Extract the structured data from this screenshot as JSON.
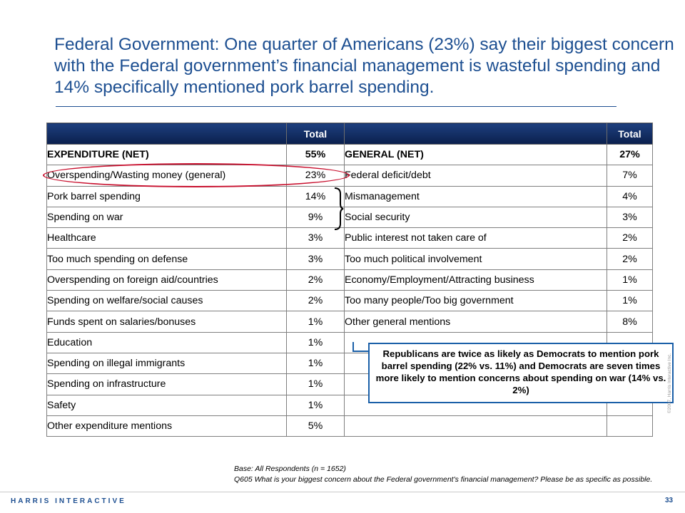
{
  "title": "Federal Government: One quarter of Americans (23%) say their biggest concern with the Federal government’s financial management is wasteful spending and 14% specifically mentioned pork barrel spending.",
  "table": {
    "header": {
      "col1": "",
      "total1": "Total",
      "col2": "",
      "total2": "Total"
    },
    "net_row": {
      "label1": "EXPENDITURE (NET)",
      "value1": "55%",
      "label2": "GENERAL (NET)",
      "value2": "27%"
    },
    "rows": [
      {
        "label1": "Overspending/Wasting money (general)",
        "value1": "23%",
        "label2": "Federal deficit/debt",
        "value2": "7%"
      },
      {
        "label1": "Pork barrel spending",
        "value1": "14%",
        "label2": "Mismanagement",
        "value2": "4%"
      },
      {
        "label1": "Spending on war",
        "value1": "9%",
        "label2": "Social security",
        "value2": "3%"
      },
      {
        "label1": "Healthcare",
        "value1": "3%",
        "label2": "Public interest not taken care of",
        "value2": "2%"
      },
      {
        "label1": "Too much spending on defense",
        "value1": "3%",
        "label2": "Too much political involvement",
        "value2": "2%"
      },
      {
        "label1": "Overspending on foreign aid/countries",
        "value1": "2%",
        "label2": "Economy/Employment/Attracting business",
        "value2": "1%"
      },
      {
        "label1": "Spending on welfare/social causes",
        "value1": "2%",
        "label2": "Too many people/Too big government",
        "value2": "1%"
      },
      {
        "label1": "Funds spent on salaries/bonuses",
        "value1": "1%",
        "label2": "Other general mentions",
        "value2": "8%"
      },
      {
        "label1": "Education",
        "value1": "1%",
        "label2": "",
        "value2": ""
      },
      {
        "label1": "Spending on illegal immigrants",
        "value1": "1%",
        "label2": "",
        "value2": ""
      },
      {
        "label1": "Spending on infrastructure",
        "value1": "1%",
        "label2": "",
        "value2": ""
      },
      {
        "label1": "Safety",
        "value1": "1%",
        "label2": "",
        "value2": ""
      },
      {
        "label1": "Other expenditure mentions",
        "value1": "5%",
        "label2": "",
        "value2": ""
      }
    ]
  },
  "callout": "Republicans are twice as likely as Democrats to mention pork barrel spending (22% vs. 11%) and Democrats are seven times more likely to mention concerns about spending on war (14% vs. 2%)",
  "footnote": {
    "base": "Base: All Respondents (n = 1652)",
    "question": "Q605 What is your biggest concern about the Federal government's financial management? Please be as specific as possible."
  },
  "brand": "HARRIS INTERACTIVE",
  "page_number": "33",
  "copyright": "©2007, Harris Interactive Inc.",
  "colors": {
    "title": "#1d4f91",
    "header_bg": "#0a1f4d",
    "highlight": "#c8102e",
    "callout_border": "#1a5fa8"
  }
}
